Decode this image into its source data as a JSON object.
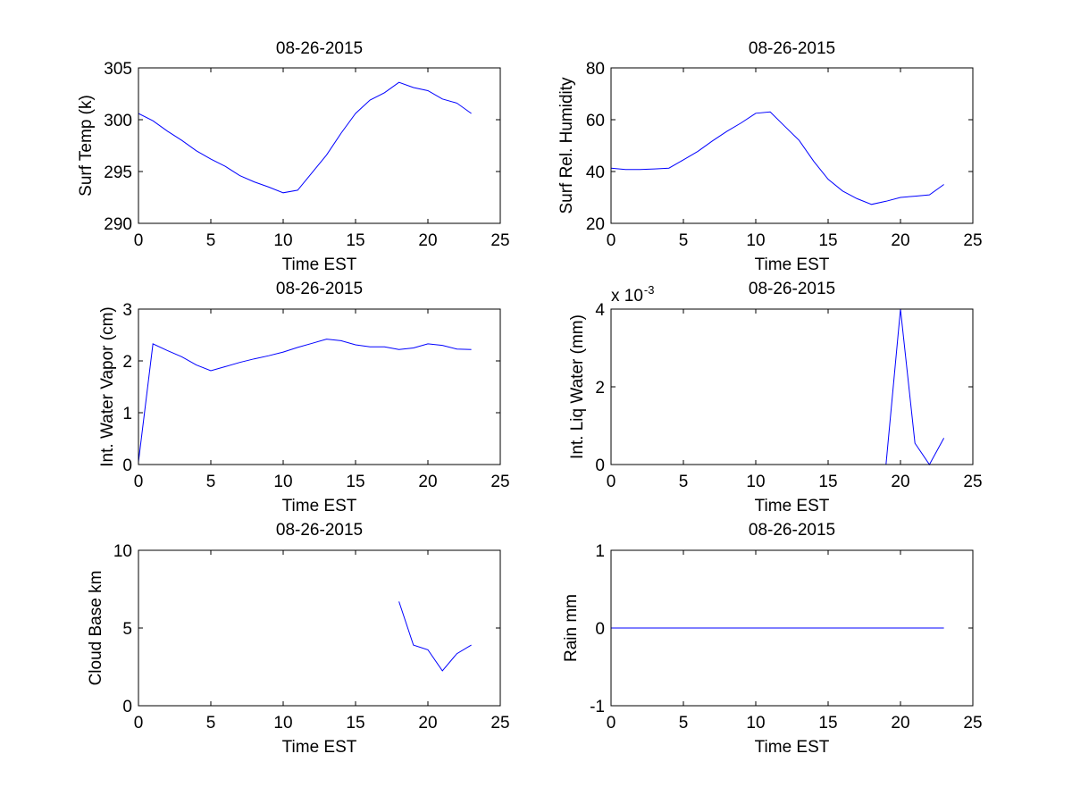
{
  "chart_data": [
    {
      "id": "surf-temp",
      "type": "line",
      "title": "08-26-2015",
      "xlabel": "Time EST",
      "ylabel": "Surf Temp (k)",
      "xlim": [
        0,
        25
      ],
      "ylim": [
        290,
        305
      ],
      "xticks": [
        0,
        5,
        10,
        15,
        20,
        25
      ],
      "yticks": [
        290,
        295,
        300,
        305
      ],
      "exponent": null,
      "color": "#0000ff",
      "series": [
        {
          "name": "Surf Temp",
          "x": [
            0,
            1,
            2,
            3,
            4,
            5,
            6,
            7,
            8,
            9,
            10,
            11,
            12,
            13,
            14,
            15,
            16,
            17,
            18,
            19,
            20,
            21,
            22,
            23
          ],
          "y": [
            300.6,
            299.9,
            298.9,
            298.0,
            297.0,
            296.2,
            295.5,
            294.6,
            294.0,
            293.5,
            292.95,
            293.2,
            294.9,
            296.6,
            298.7,
            300.6,
            301.9,
            302.6,
            303.6,
            303.1,
            302.8,
            302.0,
            301.6,
            300.6
          ]
        }
      ]
    },
    {
      "id": "surf-rel-humidity",
      "type": "line",
      "title": "08-26-2015",
      "xlabel": "Time EST",
      "ylabel": "Surf Rel. Humidity",
      "xlim": [
        0,
        25
      ],
      "ylim": [
        20,
        80
      ],
      "xticks": [
        0,
        5,
        10,
        15,
        20,
        25
      ],
      "yticks": [
        20,
        40,
        60,
        80
      ],
      "exponent": null,
      "color": "#0000ff",
      "series": [
        {
          "name": "Surf Rel. Humidity",
          "x": [
            0,
            1,
            2,
            3,
            4,
            5,
            6,
            7,
            8,
            9,
            10,
            11,
            12,
            13,
            14,
            15,
            16,
            17,
            18,
            19,
            20,
            21,
            22,
            23
          ],
          "y": [
            41.3,
            40.8,
            40.8,
            41.0,
            41.3,
            44.5,
            47.8,
            51.8,
            55.5,
            58.8,
            62.5,
            63.0,
            57.5,
            52.0,
            44.0,
            37.0,
            32.5,
            29.5,
            27.3,
            28.5,
            30.0,
            30.5,
            31.0,
            35.0
          ]
        }
      ]
    },
    {
      "id": "int-water-vapor",
      "type": "line",
      "title": "08-26-2015",
      "xlabel": "Time EST",
      "ylabel": "Int. Water Vapor (cm)",
      "xlim": [
        0,
        25
      ],
      "ylim": [
        0,
        3
      ],
      "xticks": [
        0,
        5,
        10,
        15,
        20,
        25
      ],
      "yticks": [
        0,
        1,
        2,
        3
      ],
      "exponent": null,
      "color": "#0000ff",
      "series": [
        {
          "name": "Int. Water Vapor",
          "x": [
            0,
            1,
            2,
            3,
            4,
            5,
            6,
            7,
            8,
            9,
            10,
            11,
            12,
            13,
            14,
            15,
            16,
            17,
            18,
            19,
            20,
            21,
            22,
            23
          ],
          "y": [
            0.05,
            2.33,
            2.2,
            2.08,
            1.92,
            1.81,
            1.89,
            1.97,
            2.04,
            2.1,
            2.17,
            2.26,
            2.34,
            2.42,
            2.39,
            2.31,
            2.27,
            2.27,
            2.22,
            2.25,
            2.33,
            2.3,
            2.23,
            2.22
          ]
        }
      ]
    },
    {
      "id": "int-liq-water",
      "type": "line",
      "title": "08-26-2015",
      "xlabel": "Time EST",
      "ylabel": "Int. Liq Water (mm)",
      "xlim": [
        0,
        25
      ],
      "ylim": [
        0,
        0.004
      ],
      "xticks": [
        0,
        5,
        10,
        15,
        20,
        25
      ],
      "yticks": [
        0,
        0.002,
        0.004
      ],
      "ytick_labels": [
        "0",
        "2",
        "4"
      ],
      "exponent": {
        "base": "x 10",
        "power": "-3"
      },
      "color": "#0000ff",
      "series": [
        {
          "name": "Int. Liq Water",
          "x": [
            19,
            20,
            21,
            22,
            23
          ],
          "y": [
            0,
            0.004,
            0.00055,
            0,
            0.00068
          ]
        }
      ]
    },
    {
      "id": "cloud-base",
      "type": "line",
      "title": "08-26-2015",
      "xlabel": "Time EST",
      "ylabel": "Cloud Base km",
      "xlim": [
        0,
        25
      ],
      "ylim": [
        0,
        10
      ],
      "xticks": [
        0,
        5,
        10,
        15,
        20,
        25
      ],
      "yticks": [
        0,
        5,
        10
      ],
      "exponent": null,
      "color": "#0000ff",
      "series": [
        {
          "name": "Cloud Base",
          "x": [
            18,
            19,
            20,
            21,
            22,
            23
          ],
          "y": [
            6.7,
            3.9,
            3.6,
            2.25,
            3.35,
            3.9
          ]
        }
      ]
    },
    {
      "id": "rain",
      "type": "line",
      "title": "08-26-2015",
      "xlabel": "Time EST",
      "ylabel": "Rain mm",
      "xlim": [
        0,
        25
      ],
      "ylim": [
        -1,
        1
      ],
      "xticks": [
        0,
        5,
        10,
        15,
        20,
        25
      ],
      "yticks": [
        -1,
        0,
        1
      ],
      "exponent": null,
      "color": "#0000ff",
      "series": [
        {
          "name": "Rain",
          "x": [
            0,
            23
          ],
          "y": [
            0,
            0
          ]
        }
      ]
    }
  ]
}
